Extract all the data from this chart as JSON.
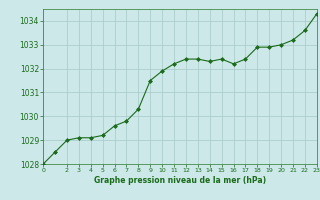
{
  "x": [
    0,
    1,
    2,
    3,
    4,
    5,
    6,
    7,
    8,
    9,
    10,
    11,
    12,
    13,
    14,
    15,
    16,
    17,
    18,
    19,
    20,
    21,
    22,
    23
  ],
  "y": [
    1028.0,
    1028.5,
    1029.0,
    1029.1,
    1029.1,
    1029.2,
    1029.6,
    1029.8,
    1030.3,
    1031.5,
    1031.9,
    1032.2,
    1032.4,
    1032.4,
    1032.3,
    1032.4,
    1032.2,
    1032.4,
    1032.9,
    1032.9,
    1033.0,
    1033.2,
    1033.6,
    1034.3
  ],
  "ylim": [
    1028,
    1034.5
  ],
  "xlim": [
    0,
    23
  ],
  "yticks": [
    1028,
    1029,
    1030,
    1031,
    1032,
    1033,
    1034
  ],
  "xticks": [
    0,
    2,
    3,
    4,
    5,
    6,
    7,
    8,
    9,
    10,
    11,
    12,
    13,
    14,
    15,
    16,
    17,
    18,
    19,
    20,
    21,
    22,
    23
  ],
  "xlabel": "Graphe pression niveau de la mer (hPa)",
  "line_color": "#1a6b1a",
  "marker_color": "#1a6b1a",
  "bg_color": "#cce8e8",
  "grid_color": "#a8c8c8",
  "axis_color": "#2a7a2a",
  "tick_color": "#1a6b1a",
  "xlabel_color": "#1a6b1a",
  "marker": "D",
  "markersize": 2.0,
  "linewidth": 0.8
}
